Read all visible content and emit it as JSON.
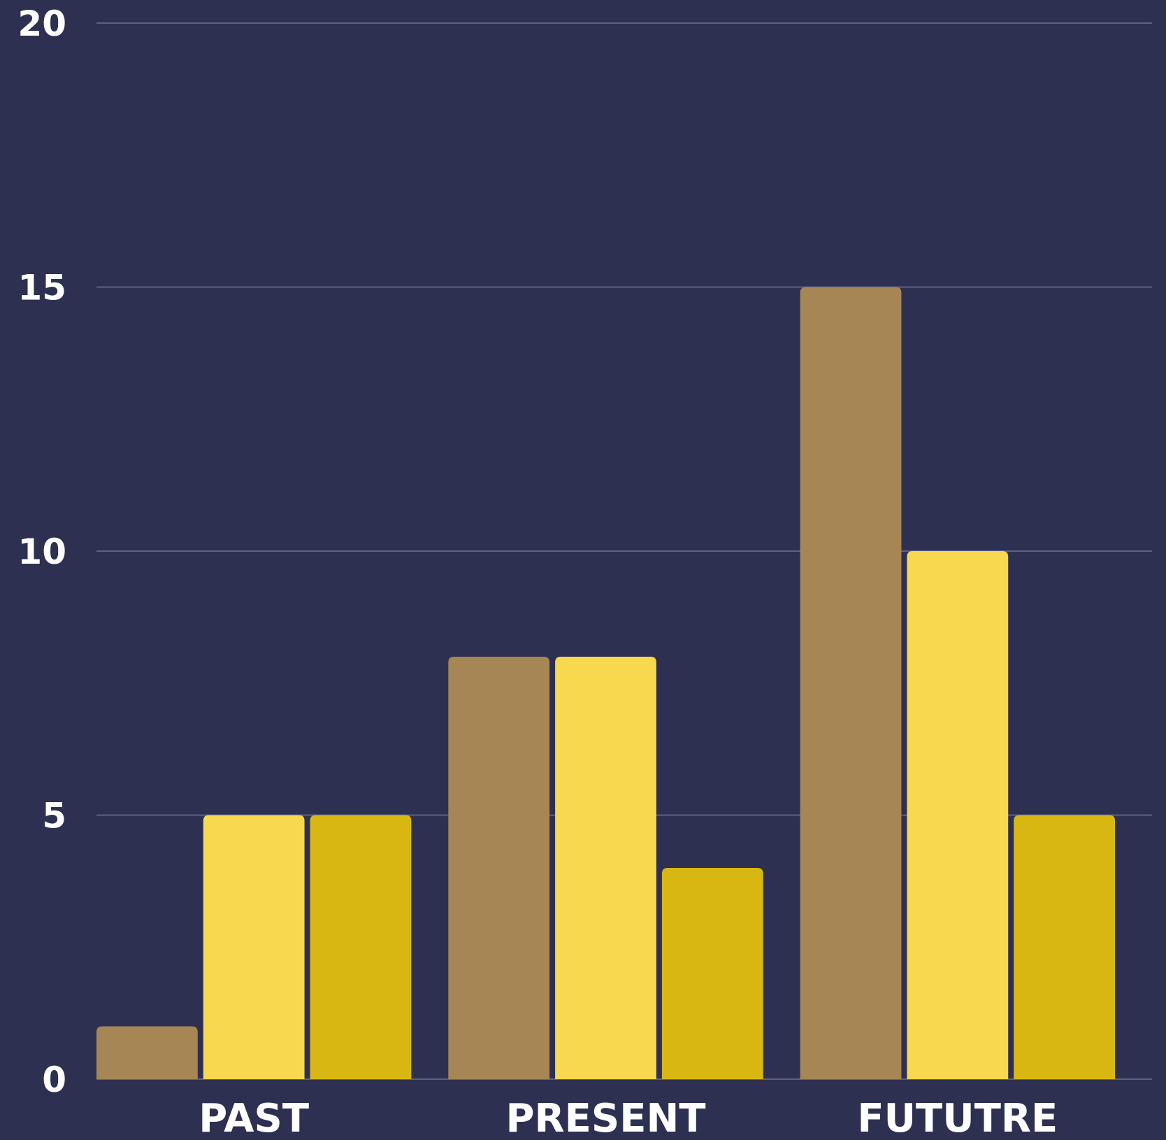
{
  "chart_data": {
    "type": "bar",
    "categories": [
      "PAST",
      "PRESENT",
      "FUTUTRE"
    ],
    "series": [
      {
        "values": [
          1,
          8,
          15
        ],
        "color": "#a68655"
      },
      {
        "values": [
          5,
          8,
          10
        ],
        "color": "#f7d84e"
      },
      {
        "values": [
          5,
          4,
          5
        ],
        "color": "#d9b713"
      }
    ],
    "y_ticks": [
      "0",
      "5",
      "10",
      "15",
      "20"
    ],
    "ylim": [
      0,
      20
    ],
    "grid": true,
    "title": "",
    "xlabel": "",
    "ylabel": ""
  },
  "colors": {
    "background": "#2d3050",
    "gridline": "#5e6180",
    "text": "#ffffff"
  }
}
